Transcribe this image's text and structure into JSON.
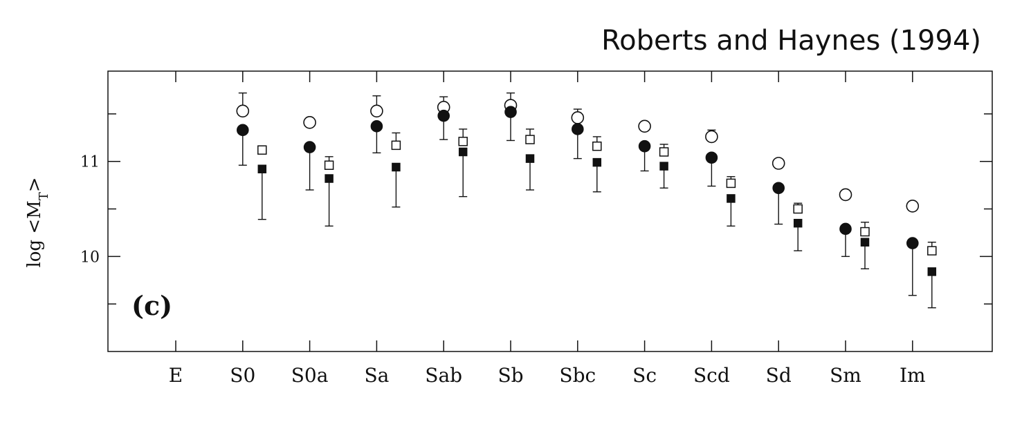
{
  "header": {
    "credit": "Roberts and Haynes (1994)"
  },
  "chart_data": {
    "type": "scatter",
    "title": "",
    "panel_label": "(c)",
    "ylabel": "log <M_T>",
    "ylabel_main": "log <M",
    "ylabel_sub": "T",
    "ylabel_end": ">",
    "xlabel": "",
    "categories": [
      "E",
      "S0",
      "S0a",
      "Sa",
      "Sab",
      "Sb",
      "Sbc",
      "Sc",
      "Scd",
      "Sd",
      "Sm",
      "Im"
    ],
    "ylim": [
      9.0,
      11.95
    ],
    "yticks": [
      10,
      11
    ],
    "yticks_minor": [
      9.5,
      10.5,
      11.5
    ],
    "grid": false,
    "series": [
      {
        "marker": "open-circle",
        "values": [
          null,
          11.53,
          11.41,
          11.53,
          11.57,
          11.59,
          11.46,
          11.37,
          11.26,
          10.98,
          10.65,
          10.53
        ],
        "err_plus": [
          null,
          0.19,
          0.04,
          0.16,
          0.11,
          0.13,
          0.09,
          0.04,
          0.07,
          0.04,
          0.03,
          0.03
        ],
        "err_minus": [
          null,
          0,
          0,
          0,
          0,
          0,
          0,
          0,
          0,
          0,
          0,
          0
        ]
      },
      {
        "marker": "filled-circle",
        "values": [
          null,
          11.33,
          11.15,
          11.37,
          11.48,
          11.52,
          11.34,
          11.16,
          11.04,
          10.72,
          10.29,
          10.14
        ],
        "err_plus": [
          null,
          0,
          0,
          0,
          0,
          0,
          0,
          0,
          0,
          0,
          0,
          0
        ],
        "err_minus": [
          null,
          0.37,
          0.45,
          0.28,
          0.25,
          0.3,
          0.31,
          0.26,
          0.3,
          0.38,
          0.29,
          0.55
        ]
      },
      {
        "marker": "open-square",
        "values": [
          null,
          11.12,
          10.96,
          11.17,
          11.21,
          11.23,
          11.16,
          11.1,
          10.77,
          10.5,
          10.26,
          10.06
        ],
        "err_plus": [
          null,
          0.03,
          0.09,
          0.13,
          0.13,
          0.11,
          0.1,
          0.08,
          0.07,
          0.06,
          0.1,
          0.09
        ],
        "err_minus": [
          null,
          0,
          0,
          0,
          0,
          0,
          0,
          0,
          0,
          0,
          0,
          0
        ]
      },
      {
        "marker": "filled-square",
        "values": [
          null,
          10.92,
          10.82,
          10.94,
          11.1,
          11.03,
          10.99,
          10.95,
          10.61,
          10.35,
          10.15,
          9.84
        ],
        "err_plus": [
          null,
          0,
          0,
          0,
          0,
          0,
          0,
          0,
          0,
          0,
          0,
          0
        ],
        "err_minus": [
          null,
          0.53,
          0.5,
          0.42,
          0.47,
          0.33,
          0.31,
          0.23,
          0.29,
          0.29,
          0.28,
          0.38
        ]
      }
    ]
  }
}
